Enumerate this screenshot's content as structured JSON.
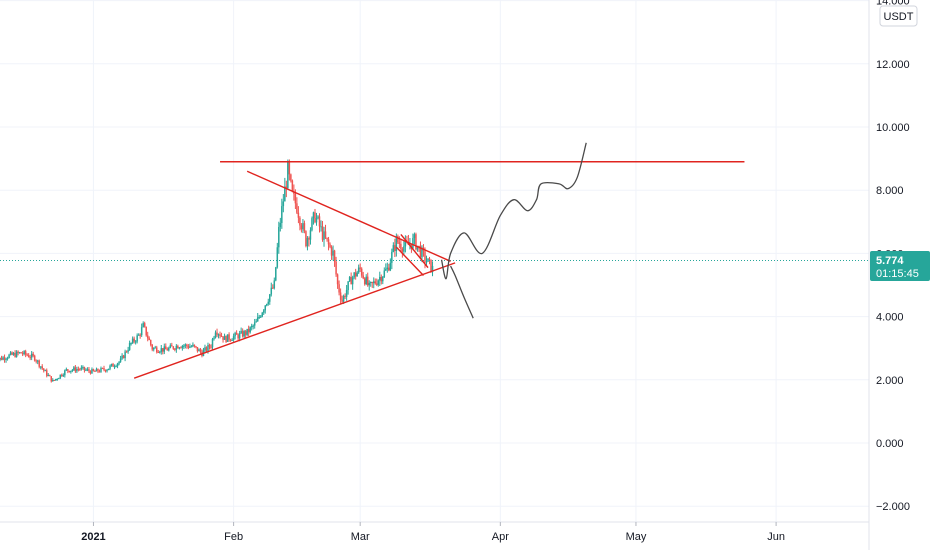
{
  "chart_data": {
    "type": "candlestick",
    "unit": "USDT",
    "ylim": [
      -2.5,
      14
    ],
    "y_ticks": [
      {
        "value": 14,
        "label": "14.000"
      },
      {
        "value": 12,
        "label": "12.000"
      },
      {
        "value": 10,
        "label": "10.000"
      },
      {
        "value": 8,
        "label": "8.000"
      },
      {
        "value": 6,
        "label": "6.000"
      },
      {
        "value": 4,
        "label": "4.000"
      },
      {
        "value": 2,
        "label": "2.000"
      },
      {
        "value": 0,
        "label": "0.000"
      },
      {
        "value": -2,
        "label": "−2.000"
      }
    ],
    "x_start": "2020-12-10",
    "x_end": "2021-06-20",
    "x_ticks": [
      {
        "date": "2021-01-01",
        "label": "2021",
        "bold": true
      },
      {
        "date": "2021-02-01",
        "label": "Feb"
      },
      {
        "date": "2021-03-01",
        "label": "Mar"
      },
      {
        "date": "2021-04-01",
        "label": "Apr"
      },
      {
        "date": "2021-05-01",
        "label": "May"
      },
      {
        "date": "2021-06-01",
        "label": "Jun"
      }
    ],
    "last_price": {
      "value": 5.774,
      "label": "5.774",
      "countdown": "01:15:45"
    },
    "colors": {
      "up": "#26a69a",
      "down": "#ef5350",
      "trendline": "#e0241f",
      "drawing": "#4a4a4a",
      "price_line": "#26a69a"
    },
    "series_close": [
      {
        "date": "2020-12-10",
        "close": 2.6
      },
      {
        "date": "2020-12-13",
        "close": 2.75
      },
      {
        "date": "2020-12-16",
        "close": 2.85
      },
      {
        "date": "2020-12-19",
        "close": 2.7
      },
      {
        "date": "2020-12-21",
        "close": 2.3
      },
      {
        "date": "2020-12-23",
        "close": 1.95
      },
      {
        "date": "2020-12-26",
        "close": 2.3
      },
      {
        "date": "2020-12-29",
        "close": 2.35
      },
      {
        "date": "2021-01-01",
        "close": 2.25
      },
      {
        "date": "2021-01-04",
        "close": 2.35
      },
      {
        "date": "2021-01-07",
        "close": 2.6
      },
      {
        "date": "2021-01-09",
        "close": 3.1
      },
      {
        "date": "2021-01-11",
        "close": 3.4
      },
      {
        "date": "2021-01-12",
        "close": 3.7
      },
      {
        "date": "2021-01-14",
        "close": 3.0
      },
      {
        "date": "2021-01-17",
        "close": 2.95
      },
      {
        "date": "2021-01-20",
        "close": 3.1
      },
      {
        "date": "2021-01-23",
        "close": 3.05
      },
      {
        "date": "2021-01-25",
        "close": 2.85
      },
      {
        "date": "2021-01-27",
        "close": 3.1
      },
      {
        "date": "2021-01-28",
        "close": 3.6
      },
      {
        "date": "2021-01-30",
        "close": 3.3
      },
      {
        "date": "2021-02-02",
        "close": 3.4
      },
      {
        "date": "2021-02-04",
        "close": 3.5
      },
      {
        "date": "2021-02-06",
        "close": 3.8
      },
      {
        "date": "2021-02-08",
        "close": 4.4
      },
      {
        "date": "2021-02-10",
        "close": 5.0
      },
      {
        "date": "2021-02-11",
        "close": 6.7
      },
      {
        "date": "2021-02-12",
        "close": 7.7
      },
      {
        "date": "2021-02-13",
        "close": 8.6
      },
      {
        "date": "2021-02-14",
        "close": 7.8
      },
      {
        "date": "2021-02-15",
        "close": 7.5
      },
      {
        "date": "2021-02-17",
        "close": 6.4
      },
      {
        "date": "2021-02-19",
        "close": 7.2
      },
      {
        "date": "2021-02-21",
        "close": 6.5
      },
      {
        "date": "2021-02-23",
        "close": 6.0
      },
      {
        "date": "2021-02-24",
        "close": 5.0
      },
      {
        "date": "2021-02-25",
        "close": 4.5
      },
      {
        "date": "2021-02-27",
        "close": 5.2
      },
      {
        "date": "2021-03-01",
        "close": 5.5
      },
      {
        "date": "2021-03-03",
        "close": 4.9
      },
      {
        "date": "2021-03-05",
        "close": 5.2
      },
      {
        "date": "2021-03-07",
        "close": 5.5
      },
      {
        "date": "2021-03-09",
        "close": 6.4
      },
      {
        "date": "2021-03-11",
        "close": 6.2
      },
      {
        "date": "2021-03-13",
        "close": 6.4
      },
      {
        "date": "2021-03-15",
        "close": 5.9
      },
      {
        "date": "2021-03-17",
        "close": 5.5
      }
    ],
    "trendlines": [
      {
        "name": "resistance",
        "from": {
          "date": "2021-01-29",
          "value": 8.9
        },
        "to": {
          "date": "2021-05-25",
          "value": 8.9
        }
      },
      {
        "name": "triangle-upper",
        "from": {
          "date": "2021-02-04",
          "value": 8.6
        },
        "to": {
          "date": "2021-03-21",
          "value": 5.75
        }
      },
      {
        "name": "triangle-lower",
        "from": {
          "date": "2021-01-10",
          "value": 2.05
        },
        "to": {
          "date": "2021-03-22",
          "value": 5.7
        }
      },
      {
        "name": "wedge-upper",
        "from": {
          "date": "2021-03-10",
          "value": 6.6
        },
        "to": {
          "date": "2021-03-16",
          "value": 5.55
        }
      },
      {
        "name": "wedge-lower",
        "from": {
          "date": "2021-03-09",
          "value": 6.2
        },
        "to": {
          "date": "2021-03-15",
          "value": 5.3
        }
      }
    ],
    "drawings": [
      {
        "name": "bullish-path",
        "points": [
          [
            "2021-03-19",
            "5.8"
          ],
          [
            "2021-03-20",
            "5.2"
          ],
          [
            "2021-03-21",
            "6.0"
          ],
          [
            "2021-03-24",
            "6.65"
          ],
          [
            "2021-03-28",
            "6.0"
          ],
          [
            "2021-04-01",
            "7.2"
          ],
          [
            "2021-04-04",
            "7.7"
          ],
          [
            "2021-04-07",
            "7.35"
          ],
          [
            "2021-04-09",
            "7.7"
          ],
          [
            "2021-04-10",
            "8.2"
          ],
          [
            "2021-04-14",
            "8.2"
          ],
          [
            "2021-04-16",
            "8.05"
          ],
          [
            "2021-04-18",
            "8.4"
          ],
          [
            "2021-04-20",
            "9.5"
          ]
        ]
      },
      {
        "name": "bearish-path",
        "points": [
          [
            "2021-03-21",
            "5.6"
          ],
          [
            "2021-03-22",
            "5.3"
          ],
          [
            "2021-03-24",
            "4.6"
          ],
          [
            "2021-03-26",
            "3.95"
          ]
        ]
      }
    ]
  }
}
